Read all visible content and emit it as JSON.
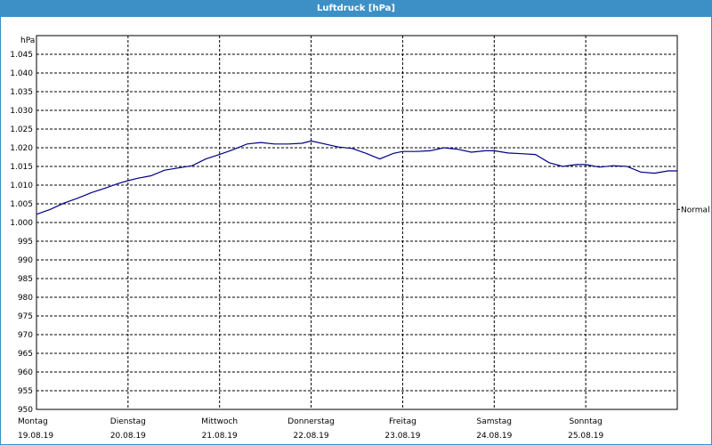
{
  "window": {
    "title": "Luftdruck [hPa]"
  },
  "chart_data": {
    "type": "line",
    "title": "Luftdruck [hPa]",
    "ylabel": "hPa",
    "ylim": [
      950,
      1050
    ],
    "yticks": [
      950,
      955,
      960,
      965,
      970,
      975,
      980,
      985,
      990,
      995,
      1000,
      1005,
      1010,
      1015,
      1020,
      1025,
      1030,
      1035,
      1040,
      1045
    ],
    "ytick_labels": [
      "950",
      "955",
      "960",
      "965",
      "970",
      "975",
      "980",
      "985",
      "990",
      "995",
      "1.000",
      "1.005",
      "1.010",
      "1.015",
      "1.020",
      "1.025",
      "1.030",
      "1.035",
      "1.040",
      "1.045"
    ],
    "xlim": [
      0,
      7
    ],
    "x_labels": [
      {
        "day": "Montag",
        "date": "19.08.19"
      },
      {
        "day": "Dienstag",
        "date": "20.08.19"
      },
      {
        "day": "Mittwoch",
        "date": "21.08.19"
      },
      {
        "day": "Donnerstag",
        "date": "22.08.19"
      },
      {
        "day": "Freitag",
        "date": "23.08.19"
      },
      {
        "day": "Samstag",
        "date": "24.08.19"
      },
      {
        "day": "Sonntag",
        "date": "25.08.19"
      }
    ],
    "grid": true,
    "reference_line": {
      "label": "Normal",
      "value": 1003.5
    },
    "series": [
      {
        "color": "#000080",
        "x": [
          0,
          0.15,
          0.3,
          0.45,
          0.6,
          0.75,
          0.9,
          1.0,
          1.1,
          1.25,
          1.4,
          1.55,
          1.7,
          1.85,
          2.0,
          2.15,
          2.3,
          2.45,
          2.6,
          2.75,
          2.9,
          3.0,
          3.15,
          3.3,
          3.45,
          3.6,
          3.75,
          3.9,
          4.0,
          4.15,
          4.3,
          4.45,
          4.6,
          4.75,
          4.9,
          5.0,
          5.15,
          5.3,
          5.45,
          5.6,
          5.75,
          5.9,
          6.0,
          6.15,
          6.3,
          6.45,
          6.6,
          6.75,
          6.9,
          7.0
        ],
        "y": [
          1002.2,
          1003.5,
          1005.2,
          1006.5,
          1008.0,
          1009.2,
          1010.5,
          1011.2,
          1011.8,
          1012.5,
          1014.0,
          1014.6,
          1015.2,
          1017.0,
          1018.2,
          1019.5,
          1021.0,
          1021.4,
          1021.0,
          1021.0,
          1021.2,
          1021.8,
          1021.0,
          1020.2,
          1019.8,
          1018.5,
          1017.0,
          1018.5,
          1019.0,
          1019.0,
          1019.2,
          1020.0,
          1019.6,
          1018.8,
          1019.2,
          1019.2,
          1018.6,
          1018.4,
          1018.2,
          1016.0,
          1015.0,
          1015.5,
          1015.5,
          1014.8,
          1015.2,
          1015.0,
          1013.5,
          1013.2,
          1013.8,
          1013.8
        ]
      }
    ]
  }
}
